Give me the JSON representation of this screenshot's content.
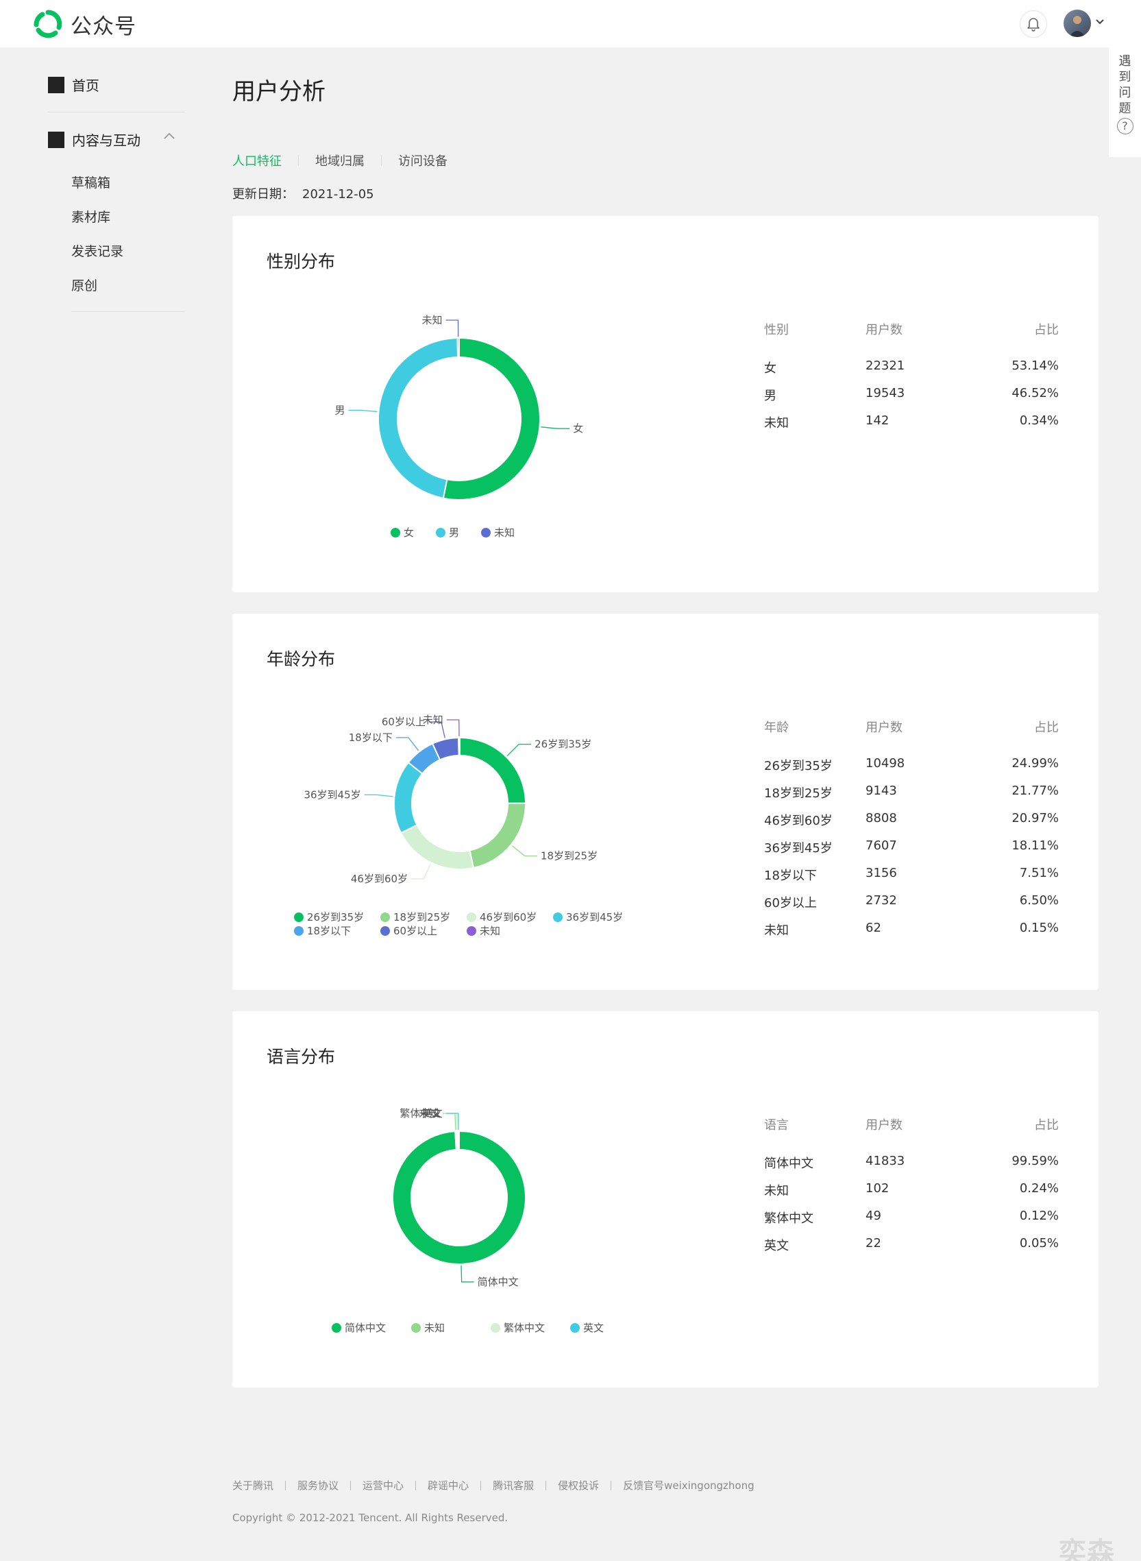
{
  "brand": {
    "name": "公众号",
    "logo_icon": "wechat-official-logo-icon",
    "color": "#07c160"
  },
  "header": {
    "bell_icon": "bell-icon",
    "avatar": "user-avatar",
    "dropdown_icon": "chevron-down-icon"
  },
  "help": {
    "label": [
      "遇",
      "到",
      "问",
      "题"
    ],
    "icon": "?"
  },
  "sidebar": {
    "home": {
      "label": "首页"
    },
    "group": {
      "label": "内容与互动",
      "items": [
        "草稿箱",
        "素材库",
        "发表记录",
        "原创"
      ]
    }
  },
  "page": {
    "title": "用户分析",
    "tabs": [
      {
        "label": "人口特征",
        "active": true
      },
      {
        "label": "地域归属",
        "active": false
      },
      {
        "label": "访问设备",
        "active": false
      }
    ],
    "update_label": "更新日期：",
    "update_date": "2021-12-05"
  },
  "chart_data": [
    {
      "type": "pie",
      "title": "性别分布",
      "donut": true,
      "legend_position": "bottom",
      "headers": [
        "性别",
        "用户数",
        "占比"
      ],
      "labels": [
        "女",
        "男",
        "未知"
      ],
      "values": [
        22321,
        19543,
        142
      ],
      "percents": [
        "53.14%",
        "46.52%",
        "0.34%"
      ],
      "colors": [
        "#07c160",
        "#3fcce0",
        "#5b6fd0"
      ]
    },
    {
      "type": "pie",
      "title": "年龄分布",
      "donut": true,
      "legend_position": "bottom",
      "headers": [
        "年龄",
        "用户数",
        "占比"
      ],
      "labels": [
        "26岁到35岁",
        "18岁到25岁",
        "46岁到60岁",
        "36岁到45岁",
        "18岁以下",
        "60岁以上",
        "未知"
      ],
      "values": [
        10498,
        9143,
        8808,
        7607,
        3156,
        2732,
        62
      ],
      "percents": [
        "24.99%",
        "21.77%",
        "20.97%",
        "18.11%",
        "7.51%",
        "6.50%",
        "0.15%"
      ],
      "colors": [
        "#07c160",
        "#91d88c",
        "#d4f0d2",
        "#3fcce0",
        "#4ea4ea",
        "#5b6fd0",
        "#8c5fd4"
      ]
    },
    {
      "type": "pie",
      "title": "语言分布",
      "donut": true,
      "legend_position": "bottom",
      "headers": [
        "语言",
        "用户数",
        "占比"
      ],
      "labels": [
        "简体中文",
        "未知",
        "繁体中文",
        "英文"
      ],
      "values": [
        41833,
        102,
        49,
        22
      ],
      "percents": [
        "99.59%",
        "0.24%",
        "0.12%",
        "0.05%"
      ],
      "colors": [
        "#07c160",
        "#91d88c",
        "#d4f0d2",
        "#3fcce0"
      ]
    }
  ],
  "footer": {
    "links": [
      "关于腾讯",
      "服务协议",
      "运营中心",
      "辟谣中心",
      "腾讯客服",
      "侵权投诉",
      "反馈官号weixingongzhong"
    ],
    "copyright": "Copyright © 2012-2021 Tencent. All Rights Reserved."
  },
  "watermark": "奕森格"
}
